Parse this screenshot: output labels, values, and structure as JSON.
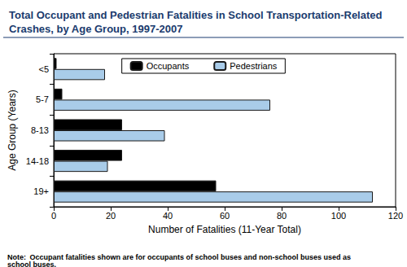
{
  "chart_data": {
    "type": "bar",
    "title": "Total Occupant and Pedestrian Fatalities in School Transportation-Related Crashes, by Age Group, 1997-2007",
    "orientation": "horizontal",
    "categories": [
      "<5",
      "5-7",
      "8-13",
      "14-18",
      "19+"
    ],
    "series": [
      {
        "name": "Occupants",
        "color": "#000000",
        "values": [
          1,
          3,
          24,
          24,
          57
        ]
      },
      {
        "name": "Pedestrians",
        "color": "#a9cce9",
        "values": [
          18,
          76,
          39,
          19,
          112
        ]
      }
    ],
    "x_label": "Number of Fatalities (11-Year Total)",
    "y_label": "Age Group (Years)",
    "xlim": [
      0,
      120
    ],
    "xticks": [
      0,
      20,
      40,
      60,
      80,
      100,
      120
    ],
    "grid": false,
    "legend": "top",
    "annotations": [
      "Note: Occupant fatalities shown are for occupants of school buses and non-school buses used as school buses."
    ]
  }
}
